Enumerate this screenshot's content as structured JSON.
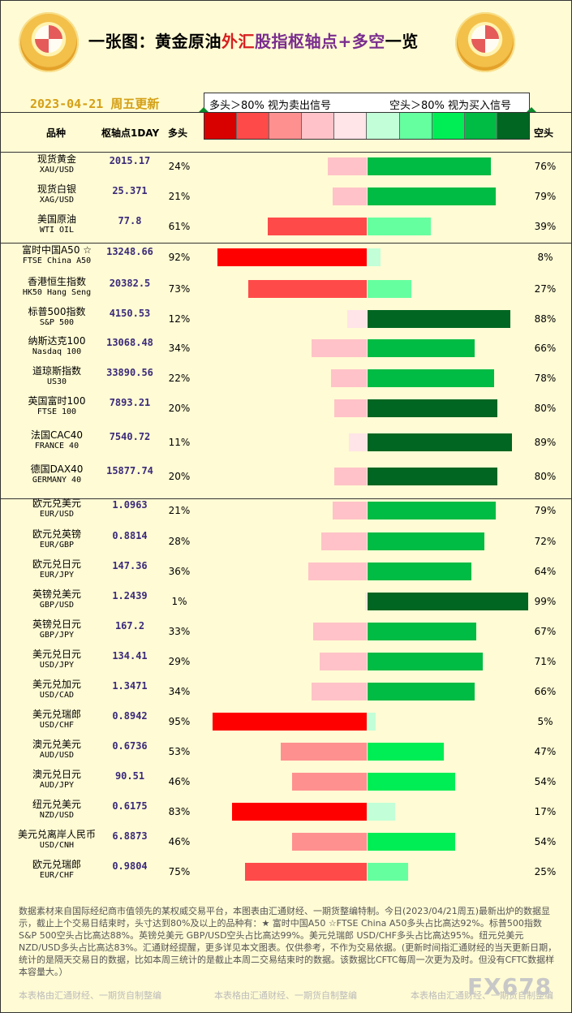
{
  "header": {
    "title_parts": [
      "一张图：黄金原油",
      "外汇",
      "股指枢轴点+多空",
      "一览"
    ],
    "update_date": "2023-04-21 周五更新",
    "signal_left": "多头＞80%  视为卖出信号",
    "signal_right": "空头＞80%  视为买入信号",
    "col_name": "品种",
    "col_pivot": "枢轴点1DAY",
    "col_long": "多头",
    "col_short": "空头"
  },
  "colors": {
    "scale": [
      "#d90000",
      "#ff4a4a",
      "#ff9090",
      "#ffc2c8",
      "#ffe4e8",
      "#c2ffd8",
      "#66ffa0",
      "#00ee55",
      "#00bb44",
      "#006622"
    ],
    "long_levels": [
      "#ffe4e8",
      "#ffc2c8",
      "#ff9090",
      "#ff4a4a",
      "#ff0000"
    ],
    "short_levels": [
      "#c2ffd8",
      "#66ffa0",
      "#00ee55",
      "#00bb44",
      "#006622"
    ]
  },
  "chart_data": {
    "type": "bar",
    "series": [
      {
        "name": "多头",
        "values": [
          24,
          21,
          61,
          92,
          73,
          12,
          34,
          22,
          20,
          11,
          20,
          21,
          28,
          36,
          1,
          33,
          29,
          34,
          95,
          53,
          46,
          83,
          46,
          75
        ]
      },
      {
        "name": "空头",
        "values": [
          76,
          79,
          39,
          8,
          27,
          88,
          66,
          78,
          80,
          89,
          80,
          79,
          72,
          64,
          99,
          67,
          71,
          66,
          5,
          47,
          54,
          17,
          54,
          25
        ]
      }
    ],
    "rows": [
      {
        "name": "现货黄金",
        "code": "XAU/USD",
        "pivot": "2015.17",
        "long": 24,
        "short": 76,
        "long_label": "24%",
        "short_label": "76%"
      },
      {
        "name": "现货白银",
        "code": "XAG/USD",
        "pivot": "25.371",
        "long": 21,
        "short": 79,
        "long_label": "21%",
        "short_label": "79%"
      },
      {
        "name": "美国原油",
        "code": "WTI OIL",
        "pivot": "77.8",
        "long": 61,
        "short": 39,
        "long_label": "61%",
        "short_label": "39%"
      },
      {
        "name": "富时中国A50 ☆",
        "code": "FTSE China A50",
        "pivot": "13248.66",
        "long": 92,
        "short": 8,
        "long_label": "92%",
        "short_label": "8%"
      },
      {
        "name": "香港恒生指数",
        "code": "HK50 Hang Seng",
        "pivot": "20382.5",
        "long": 73,
        "short": 27,
        "long_label": "73%",
        "short_label": "27%"
      },
      {
        "name": "标普500指数",
        "code": "S&P 500",
        "pivot": "4150.53",
        "long": 12,
        "short": 88,
        "long_label": "12%",
        "short_label": "88%"
      },
      {
        "name": "纳斯达克100",
        "code": "Nasdaq 100",
        "pivot": "13068.48",
        "long": 34,
        "short": 66,
        "long_label": "34%",
        "short_label": "66%"
      },
      {
        "name": "道琼斯指数",
        "code": "US30",
        "pivot": "33890.56",
        "long": 22,
        "short": 78,
        "long_label": "22%",
        "short_label": "78%"
      },
      {
        "name": "英国富时100",
        "code": "FTSE 100",
        "pivot": "7893.21",
        "long": 20,
        "short": 80,
        "long_label": "20%",
        "short_label": "80%"
      },
      {
        "name": "法国CAC40",
        "code": "FRANCE 40",
        "pivot": "7540.72",
        "long": 11,
        "short": 89,
        "long_label": "11%",
        "short_label": "89%"
      },
      {
        "name": "德国DAX40",
        "code": "GERMANY 40",
        "pivot": "15877.74",
        "long": 20,
        "short": 80,
        "long_label": "20%",
        "short_label": "80%"
      },
      {
        "name": "欧元兑美元",
        "code": "EUR/USD",
        "pivot": "1.0963",
        "long": 21,
        "short": 79,
        "long_label": "21%",
        "short_label": "79%"
      },
      {
        "name": "欧元兑英镑",
        "code": "EUR/GBP",
        "pivot": "0.8814",
        "long": 28,
        "short": 72,
        "long_label": "28%",
        "short_label": "72%"
      },
      {
        "name": "欧元兑日元",
        "code": "EUR/JPY",
        "pivot": "147.36",
        "long": 36,
        "short": 64,
        "long_label": "36%",
        "short_label": "64%"
      },
      {
        "name": "英镑兑美元",
        "code": "GBP/USD",
        "pivot": "1.2439",
        "long": 1,
        "short": 99,
        "long_label": "1%",
        "short_label": "99%"
      },
      {
        "name": "英镑兑日元",
        "code": "GBP/JPY",
        "pivot": "167.2",
        "long": 33,
        "short": 67,
        "long_label": "33%",
        "short_label": "67%"
      },
      {
        "name": "美元兑日元",
        "code": "USD/JPY",
        "pivot": "134.41",
        "long": 29,
        "short": 71,
        "long_label": "29%",
        "short_label": "71%"
      },
      {
        "name": "美元兑加元",
        "code": "USD/CAD",
        "pivot": "1.3471",
        "long": 34,
        "short": 66,
        "long_label": "34%",
        "short_label": "66%"
      },
      {
        "name": "美元兑瑞郎",
        "code": "USD/CHF",
        "pivot": "0.8942",
        "long": 95,
        "short": 5,
        "long_label": "95%",
        "short_label": "5%"
      },
      {
        "name": "澳元兑美元",
        "code": "AUD/USD",
        "pivot": "0.6736",
        "long": 53,
        "short": 47,
        "long_label": "53%",
        "short_label": "47%"
      },
      {
        "name": "澳元兑日元",
        "code": "AUD/JPY",
        "pivot": "90.51",
        "long": 46,
        "short": 54,
        "long_label": "46%",
        "short_label": "54%"
      },
      {
        "name": "纽元兑美元",
        "code": "NZD/USD",
        "pivot": "0.6175",
        "long": 83,
        "short": 17,
        "long_label": "83%",
        "short_label": "17%"
      },
      {
        "name": "美元兑离岸人民币",
        "code": "USD/CNH",
        "pivot": "6.8873",
        "long": 46,
        "short": 54,
        "long_label": "46%",
        "short_label": "54%"
      },
      {
        "name": "欧元兑瑞郎",
        "code": "EUR/CHF",
        "pivot": "0.9804",
        "long": 75,
        "short": 25,
        "long_label": "75%",
        "short_label": "25%"
      }
    ]
  },
  "footer": {
    "note": "数据素材来自国际经纪商市值领先的某权威交易平台，本图表由汇通财经、一期货整编特制。今日(2023/04/21周五)最新出炉的数据显示，截止上个交易日结束时，头寸达到80%及以上的品种有：★ 富时中国A50 ☆FTSE China A50多头占比高达92%。标普500指数 S&P 500空头占比高达88%。英镑兑美元 GBP/USD空头占比高达99%。美元兑瑞郎 USD/CHF多头占比高达95%。纽元兑美元 NZD/USD多头占比高达83%。汇通财经提醒，更多详见本文图表。仅供参考，不作为交易依据。(更新时间指汇通财经的当天更新日期，统计的是隔天交易日的数据，比如本周三统计的是截止本周二交易结束时的数据。该数据比CFTC每周一次更为及时。但没有CFTC数据样本容量大。）",
    "watermark": "本表格由汇通财经、一期货自制整编",
    "brand": "FX678"
  }
}
